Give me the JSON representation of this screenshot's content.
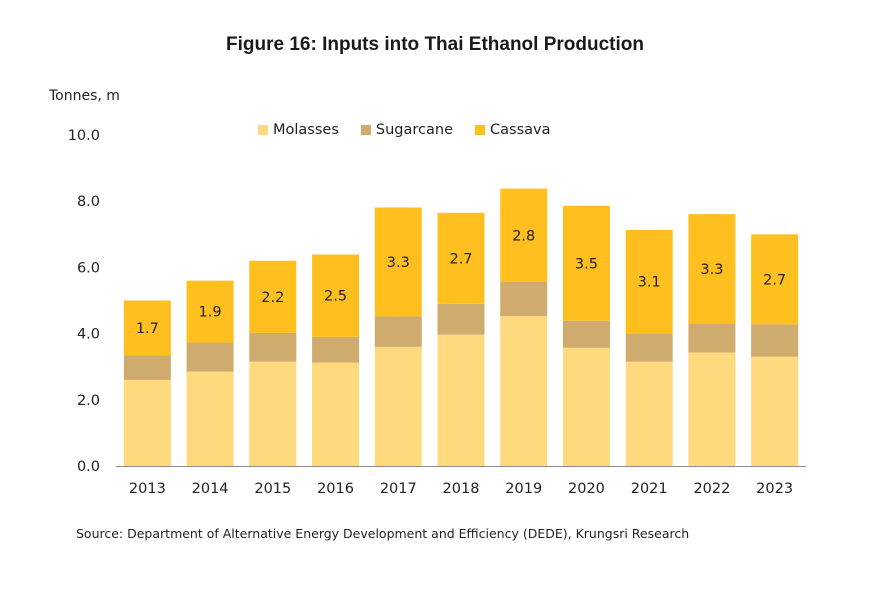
{
  "chart_data": {
    "type": "bar",
    "stacked": true,
    "title": "Figure 16: Inputs into Thai Ethanol Production",
    "ylabel": "Tonnes, m",
    "xlabel": "",
    "ylim": [
      0,
      10
    ],
    "yticks": [
      "0.0",
      "2.0",
      "4.0",
      "6.0",
      "8.0",
      "10.0"
    ],
    "grid": false,
    "legend_position": "top",
    "categories": [
      "2013",
      "2014",
      "2015",
      "2016",
      "2017",
      "2018",
      "2019",
      "2020",
      "2021",
      "2022",
      "2023"
    ],
    "series": [
      {
        "name": "Molasses",
        "color": "#FFD97D",
        "values": [
          2.6,
          2.85,
          3.15,
          3.12,
          3.6,
          3.97,
          4.53,
          3.57,
          3.15,
          3.43,
          3.3
        ]
      },
      {
        "name": "Sugarcane",
        "color": "#CFAC6E",
        "values": [
          0.75,
          0.88,
          0.87,
          0.78,
          0.92,
          0.93,
          1.03,
          0.82,
          0.86,
          0.86,
          0.98
        ]
      },
      {
        "name": "Cassava",
        "color": "#FFBF1F",
        "values": [
          1.65,
          1.87,
          2.18,
          2.49,
          3.29,
          2.75,
          2.82,
          3.47,
          3.12,
          3.32,
          2.72
        ],
        "labels": [
          "1.7",
          "1.9",
          "2.2",
          "2.5",
          "3.3",
          "2.7",
          "2.8",
          "3.5",
          "3.1",
          "3.3",
          "2.7"
        ]
      }
    ],
    "source": "Source: Department of Alternative Energy Development and Efficiency (DEDE), Krungsri Research"
  }
}
